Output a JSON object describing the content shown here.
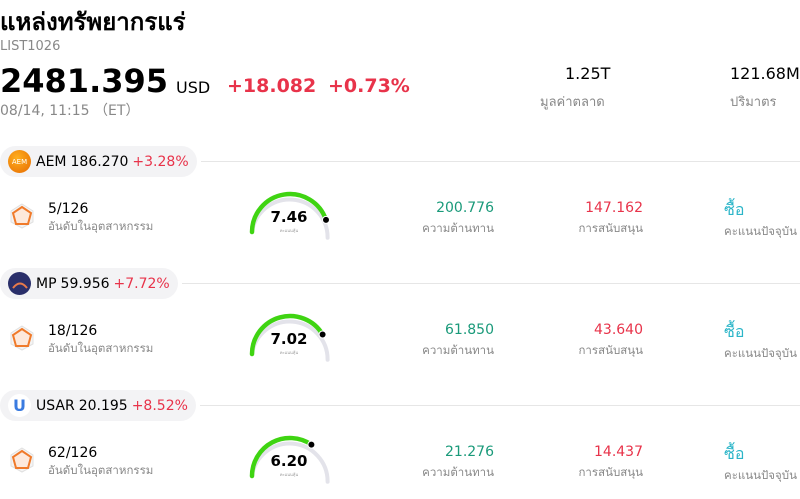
{
  "header": {
    "title": "แหล่งทรัพยากรแร่",
    "code": "LIST1026",
    "price": "2481.395",
    "currency": "USD",
    "change": "+18.082",
    "change_pct": "+0.73%",
    "time": "08/14, 11:15 （ET）",
    "market_cap": "1.25T",
    "market_cap_label": "มูลค่าตลาด",
    "volume": "121.68M",
    "volume_label": "ปริมาตร"
  },
  "stocks": [
    {
      "icon_text": "AEM",
      "ticker": "AEM",
      "price": "186.270",
      "change": "+3.28%",
      "rank": "5/126",
      "rank_label": "อันดับในอุตสาหกรรม",
      "score": "7.46",
      "score_label": "คะแนนหุ้น",
      "resistance": "200.776",
      "resistance_label": "ความต้านทาน",
      "support": "147.162",
      "support_label": "การสนับสนุน",
      "action": "ซื้อ",
      "action_label": "คะแนนปัจจุบัน"
    },
    {
      "ticker": "MP",
      "price": "59.956",
      "change": "+7.72%",
      "rank": "18/126",
      "rank_label": "อันดับในอุตสาหกรรม",
      "score": "7.02",
      "score_label": "คะแนนหุ้น",
      "resistance": "61.850",
      "resistance_label": "ความต้านทาน",
      "support": "43.640",
      "support_label": "การสนับสนุน",
      "action": "ซื้อ",
      "action_label": "คะแนนปัจจุบัน"
    },
    {
      "icon_text": "U",
      "ticker": "USAR",
      "price": "20.195",
      "change": "+8.52%",
      "rank": "62/126",
      "rank_label": "อันดับในอุตสาหกรรม",
      "score": "6.20",
      "score_label": "คะแนนหุ้น",
      "resistance": "21.276",
      "resistance_label": "ความต้านทาน",
      "support": "14.437",
      "support_label": "การสนับสนุน",
      "action": "ซื้อ",
      "action_label": "คะแนนปัจจุบัน"
    }
  ]
}
